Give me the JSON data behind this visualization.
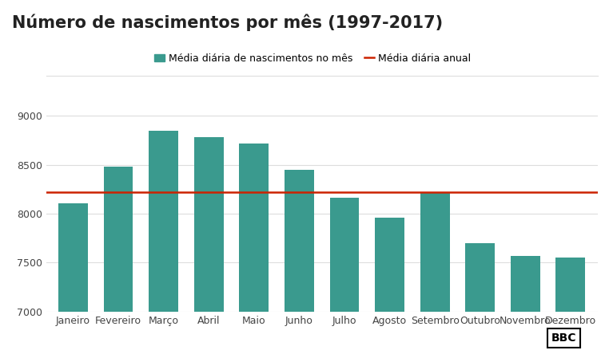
{
  "title": "Número de nascimentos por mês (1997-2017)",
  "categories": [
    "Janeiro",
    "Fevereiro",
    "Março",
    "Abril",
    "Maio",
    "Junho",
    "Julho",
    "Agosto",
    "Setembro",
    "Outubro",
    "Novembro",
    "Dezembro"
  ],
  "values": [
    8110,
    8480,
    8850,
    8780,
    8720,
    8450,
    8160,
    7960,
    8220,
    7700,
    7570,
    7550
  ],
  "bar_color": "#3a9a8e",
  "annual_mean": 8220,
  "annual_mean_color": "#cc2200",
  "ylim": [
    7000,
    9100
  ],
  "yticks": [
    7000,
    7500,
    8000,
    8500,
    9000
  ],
  "legend_bar_label": "Média diária de nascimentos no mês",
  "legend_line_label": "Média diária anual",
  "background_color": "#ffffff",
  "grid_color": "#dddddd",
  "title_fontsize": 15,
  "tick_fontsize": 9,
  "legend_fontsize": 9
}
